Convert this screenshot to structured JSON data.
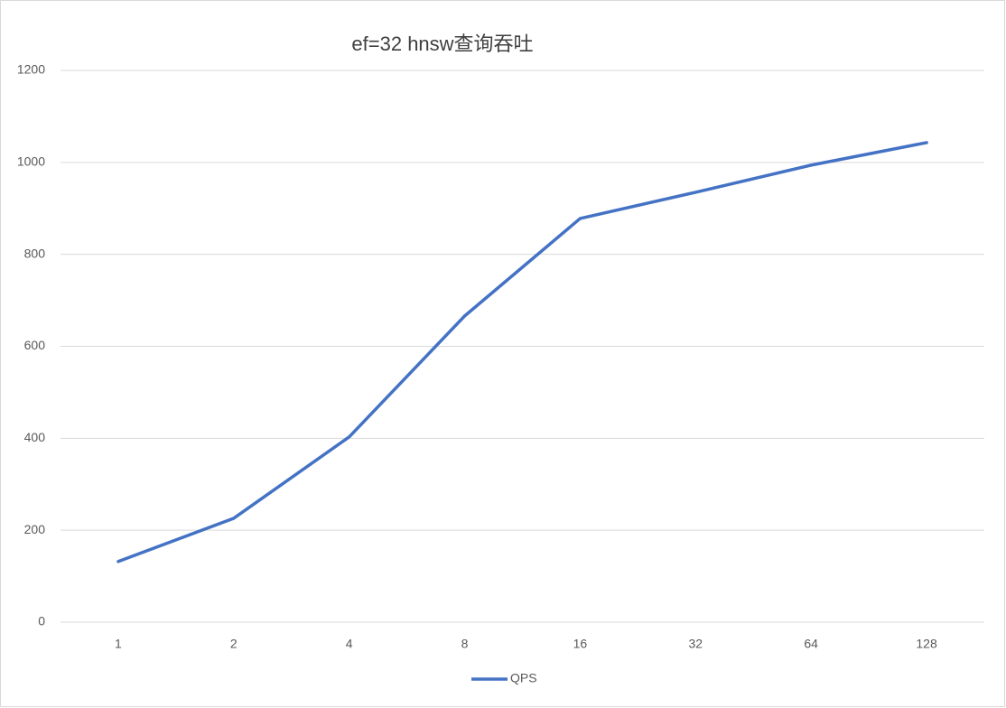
{
  "chart_data": {
    "type": "line",
    "title": "ef=32 hnsw查询吞吐",
    "categories": [
      "1",
      "2",
      "4",
      "8",
      "16",
      "32",
      "64",
      "128"
    ],
    "series": [
      {
        "name": "QPS",
        "color": "#4472c4",
        "values": [
          132,
          226,
          403,
          666,
          878,
          935,
          994,
          1043
        ]
      }
    ],
    "ylim": [
      0,
      1200
    ],
    "yticks": [
      0,
      200,
      400,
      600,
      800,
      1000,
      1200
    ],
    "grid": true,
    "legend": "bottom"
  }
}
